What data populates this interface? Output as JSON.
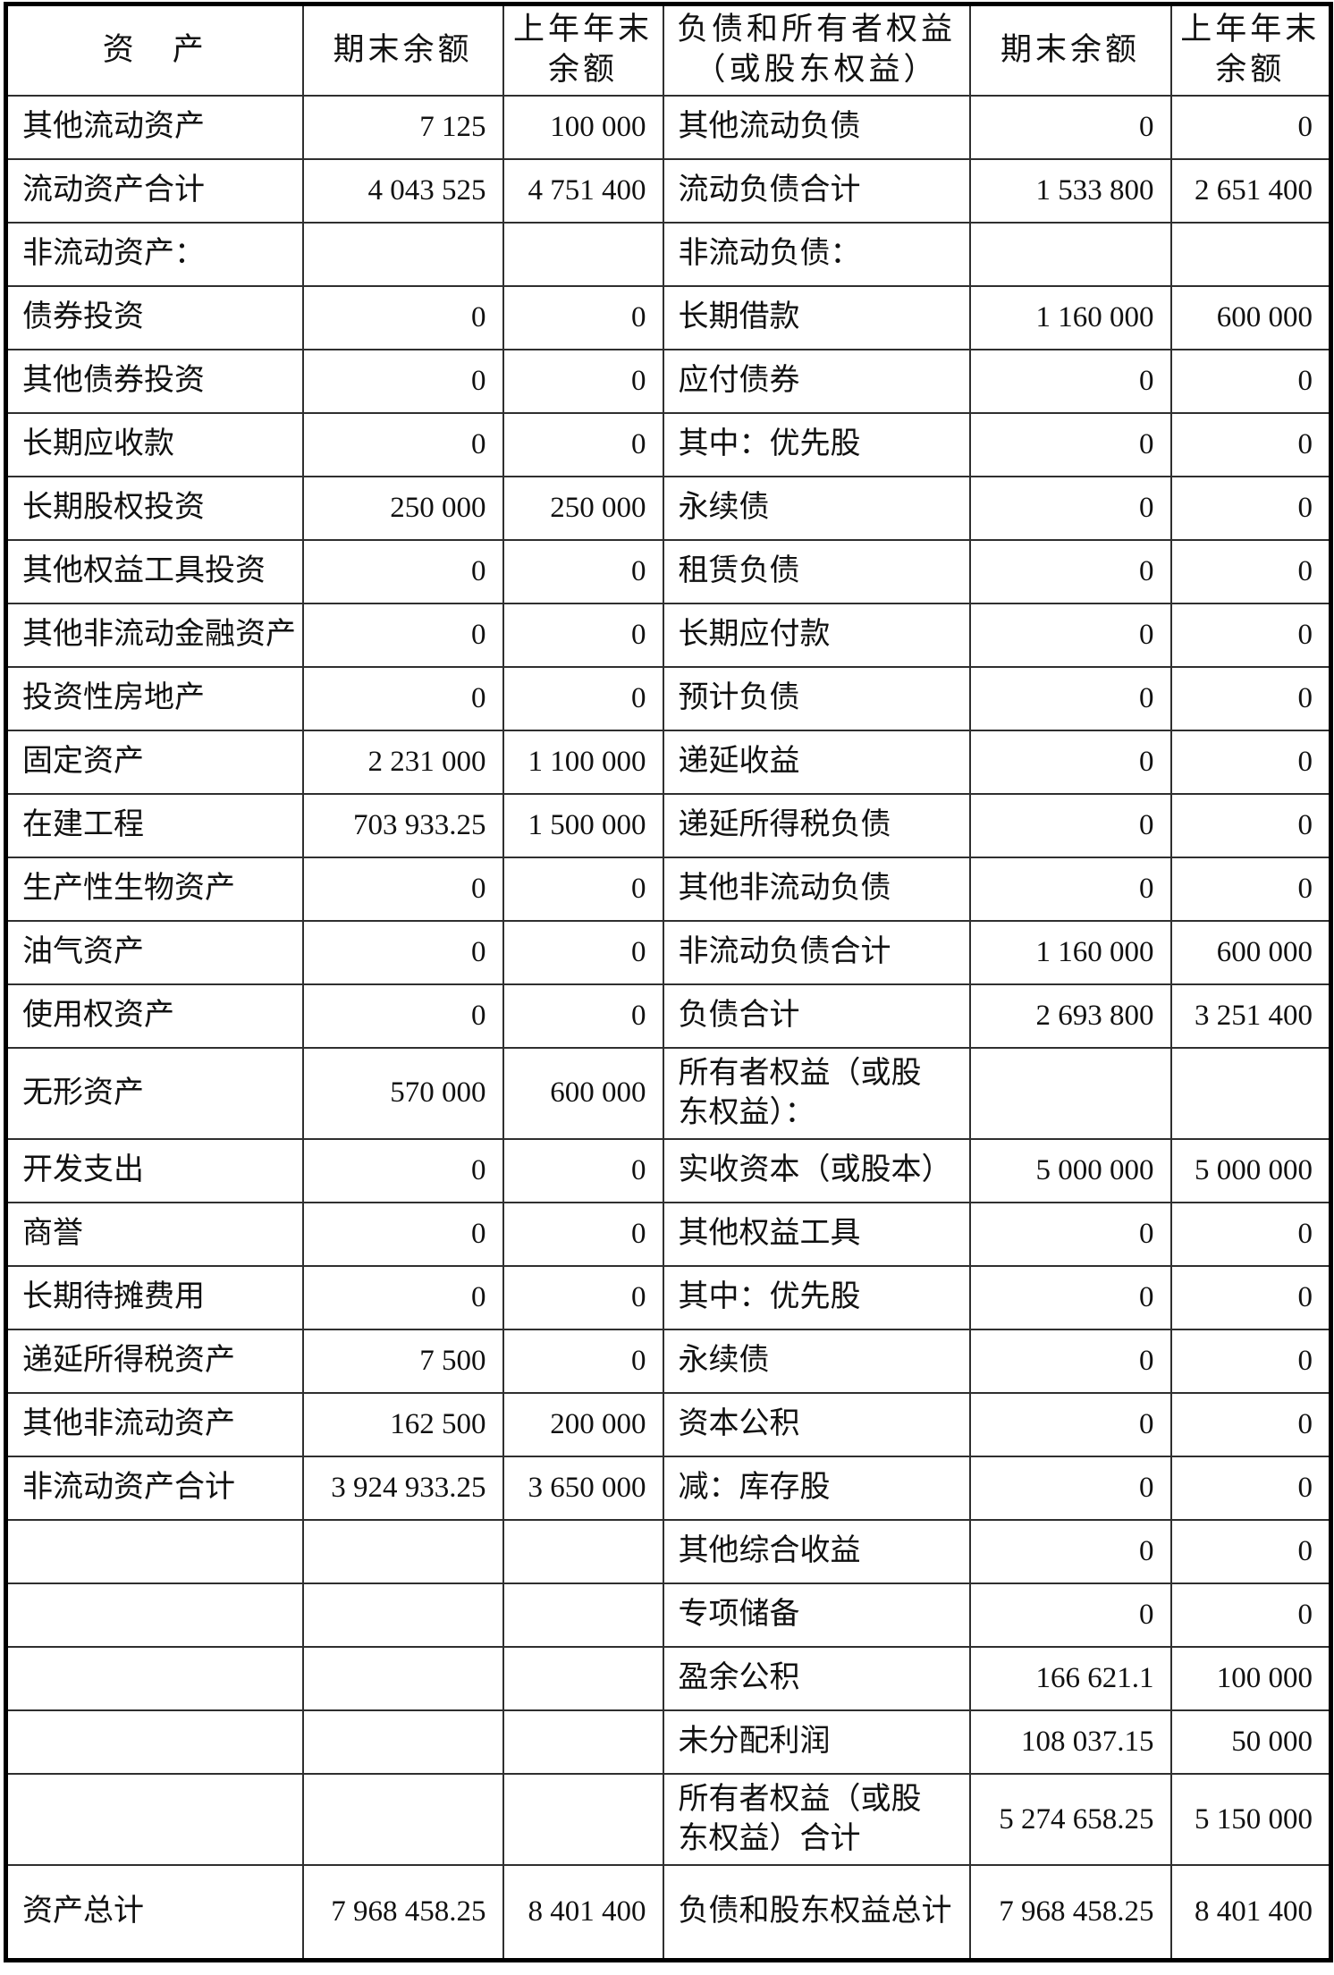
{
  "table": {
    "header": {
      "assets": "资　产",
      "ending_balance": "期末余额",
      "prior_year_balance": "上年年末\n余额",
      "liabilities_equity": "负债和所有者权益\n（或股东权益）",
      "ending_balance_2": "期末余额",
      "prior_year_balance_2": "上年年末\n余额"
    },
    "rows": [
      {
        "asset": "其他流动资产",
        "ae": "7 125",
        "ap": "100 000",
        "liab": "其他流动负债",
        "le": "0",
        "lp": "0"
      },
      {
        "asset": "流动资产合计",
        "ae": "4 043 525",
        "ap": "4 751 400",
        "liab": "流动负债合计",
        "le": "1 533 800",
        "lp": "2 651 400"
      },
      {
        "asset": "非流动资产：",
        "ae": "",
        "ap": "",
        "liab": "非流动负债：",
        "le": "",
        "lp": ""
      },
      {
        "asset": "债券投资",
        "ae": "0",
        "ap": "0",
        "liab": "长期借款",
        "le": "1 160 000",
        "lp": "600 000"
      },
      {
        "asset": "其他债券投资",
        "ae": "0",
        "ap": "0",
        "liab": "应付债券",
        "le": "0",
        "lp": "0"
      },
      {
        "asset": "长期应收款",
        "ae": "0",
        "ap": "0",
        "liab": "其中：优先股",
        "le": "0",
        "lp": "0"
      },
      {
        "asset": "长期股权投资",
        "ae": "250 000",
        "ap": "250 000",
        "liab": "永续债",
        "le": "0",
        "lp": "0"
      },
      {
        "asset": "其他权益工具投资",
        "ae": "0",
        "ap": "0",
        "liab": "租赁负债",
        "le": "0",
        "lp": "0"
      },
      {
        "asset": "其他非流动金融资产",
        "ae": "0",
        "ap": "0",
        "liab": "长期应付款",
        "le": "0",
        "lp": "0"
      },
      {
        "asset": "投资性房地产",
        "ae": "0",
        "ap": "0",
        "liab": "预计负债",
        "le": "0",
        "lp": "0"
      },
      {
        "asset": "固定资产",
        "ae": "2 231 000",
        "ap": "1 100 000",
        "liab": "递延收益",
        "le": "0",
        "lp": "0"
      },
      {
        "asset": "在建工程",
        "ae": "703 933.25",
        "ap": "1 500 000",
        "liab": "递延所得税负债",
        "le": "0",
        "lp": "0"
      },
      {
        "asset": "生产性生物资产",
        "ae": "0",
        "ap": "0",
        "liab": "其他非流动负债",
        "le": "0",
        "lp": "0"
      },
      {
        "asset": "油气资产",
        "ae": "0",
        "ap": "0",
        "liab": "非流动负债合计",
        "le": "1 160 000",
        "lp": "600 000"
      },
      {
        "asset": "使用权资产",
        "ae": "0",
        "ap": "0",
        "liab": "负债合计",
        "le": "2 693 800",
        "lp": "3 251 400"
      },
      {
        "asset": "无形资产",
        "ae": "570 000",
        "ap": "600 000",
        "liab": "所有者权益（或股\n东权益）：",
        "le": "",
        "lp": ""
      },
      {
        "asset": "开发支出",
        "ae": "0",
        "ap": "0",
        "liab": "实收资本（或股本）",
        "le": "5 000 000",
        "lp": "5 000 000"
      },
      {
        "asset": "商誉",
        "ae": "0",
        "ap": "0",
        "liab": "其他权益工具",
        "le": "0",
        "lp": "0"
      },
      {
        "asset": "长期待摊费用",
        "ae": "0",
        "ap": "0",
        "liab": "其中：优先股",
        "le": "0",
        "lp": "0"
      },
      {
        "asset": "递延所得税资产",
        "ae": "7 500",
        "ap": "0",
        "liab": "永续债",
        "le": "0",
        "lp": "0"
      },
      {
        "asset": "其他非流动资产",
        "ae": "162 500",
        "ap": "200 000",
        "liab": "资本公积",
        "le": "0",
        "lp": "0"
      },
      {
        "asset": "非流动资产合计",
        "ae": "3 924 933.25",
        "ap": "3 650 000",
        "liab": "减：库存股",
        "le": "0",
        "lp": "0"
      },
      {
        "asset": "",
        "ae": "",
        "ap": "",
        "liab": "其他综合收益",
        "le": "0",
        "lp": "0"
      },
      {
        "asset": "",
        "ae": "",
        "ap": "",
        "liab": "专项储备",
        "le": "0",
        "lp": "0"
      },
      {
        "asset": "",
        "ae": "",
        "ap": "",
        "liab": "盈余公积",
        "le": "166 621.1",
        "lp": "100 000"
      },
      {
        "asset": "",
        "ae": "",
        "ap": "",
        "liab": "未分配利润",
        "le": "108 037.15",
        "lp": "50 000"
      },
      {
        "asset": "",
        "ae": "",
        "ap": "",
        "liab": "所有者权益（或股\n东权益）合计",
        "le": "5 274 658.25",
        "lp": "5 150 000"
      },
      {
        "asset": "资产总计",
        "ae": "7 968 458.25",
        "ap": "8 401 400",
        "liab": "负债和股东权益总计",
        "le": "7 968 458.25",
        "lp": "8 401 400"
      }
    ]
  }
}
